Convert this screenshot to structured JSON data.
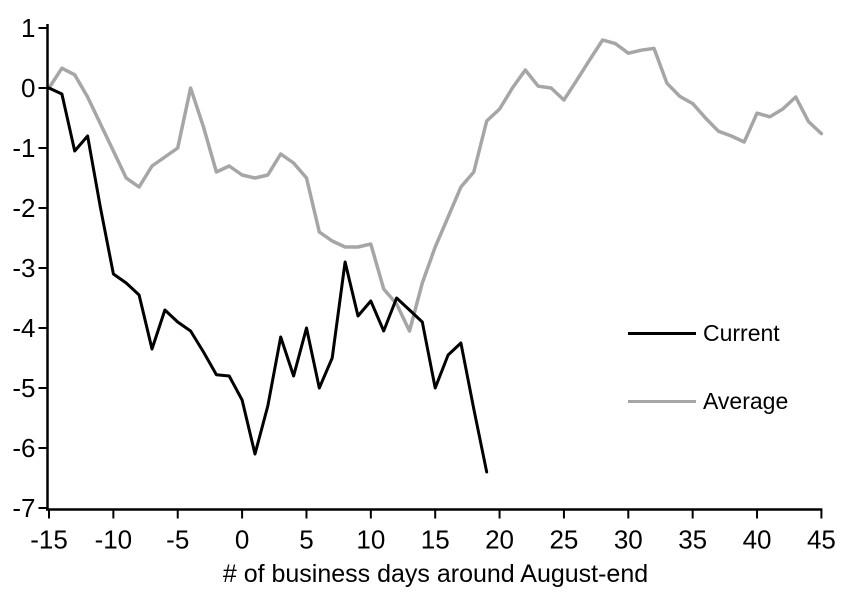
{
  "chart_data": {
    "type": "line",
    "title": "",
    "xlabel": "# of business days around August-end",
    "ylabel": "",
    "xlim": [
      -15,
      45
    ],
    "ylim": [
      -7,
      1
    ],
    "x_ticks": [
      -15,
      -10,
      -5,
      0,
      5,
      10,
      15,
      20,
      25,
      30,
      35,
      40,
      45
    ],
    "y_ticks": [
      1,
      0,
      -1,
      -2,
      -3,
      -4,
      -5,
      -6,
      -7
    ],
    "grid": false,
    "legend_position": "inside-right-middle",
    "series": [
      {
        "name": "Current",
        "color": "#000000",
        "width": 3,
        "x_start": -15,
        "step": 1,
        "values": [
          0,
          -0.1,
          -1.05,
          -0.8,
          -2.0,
          -3.1,
          -3.25,
          -3.45,
          -4.35,
          -3.7,
          -3.9,
          -4.05,
          -4.4,
          -4.78,
          -4.8,
          -5.2,
          -6.1,
          -5.3,
          -4.15,
          -4.8,
          -4.0,
          -5.0,
          -4.5,
          -2.9,
          -3.8,
          -3.55,
          -4.05,
          -3.5,
          -3.7,
          -3.9,
          -5.0,
          -4.45,
          -4.25,
          -5.35,
          -6.4
        ]
      },
      {
        "name": "Average",
        "color": "#a6a6a6",
        "width": 3.5,
        "x_start": -15,
        "step": 1,
        "values": [
          0,
          0.33,
          0.22,
          -0.15,
          -0.6,
          -1.05,
          -1.5,
          -1.65,
          -1.3,
          -1.15,
          -1.0,
          0.0,
          -0.65,
          -1.4,
          -1.3,
          -1.45,
          -1.5,
          -1.45,
          -1.1,
          -1.25,
          -1.5,
          -2.4,
          -2.55,
          -2.65,
          -2.65,
          -2.6,
          -3.35,
          -3.6,
          -4.05,
          -3.25,
          -2.65,
          -2.15,
          -1.65,
          -1.4,
          -0.55,
          -0.35,
          0.0,
          0.3,
          0.03,
          0.0,
          -0.2,
          0.13,
          0.47,
          0.8,
          0.74,
          0.58,
          0.63,
          0.66,
          0.08,
          -0.14,
          -0.26,
          -0.5,
          -0.72,
          -0.8,
          -0.9,
          -0.42,
          -0.48,
          -0.35,
          -0.15,
          -0.56,
          -0.76
        ]
      }
    ]
  },
  "colors": {
    "background": "#ffffff",
    "axis": "#000000",
    "tick_text": "#000000"
  }
}
